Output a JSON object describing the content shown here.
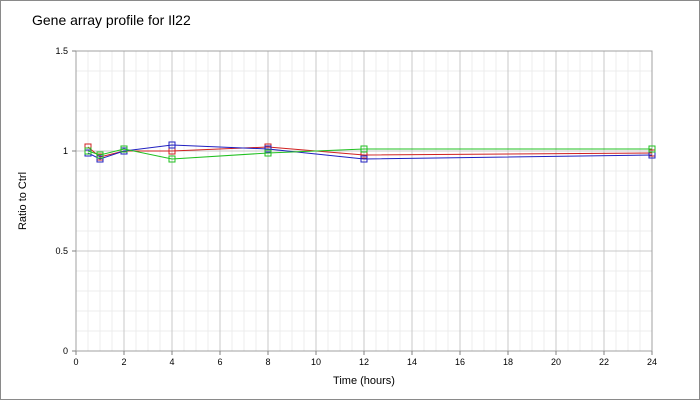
{
  "chart_data": {
    "type": "line",
    "title": "Gene array profile for Il22",
    "xlabel": "Time (hours)",
    "ylabel": "Ratio to Ctrl",
    "xlim": [
      0,
      24
    ],
    "ylim": [
      0,
      1.5
    ],
    "x_ticks": [
      "0",
      "2",
      "4",
      "6",
      "8",
      "10",
      "12",
      "14",
      "16",
      "18",
      "20",
      "22",
      "24"
    ],
    "y_ticks": [
      "0",
      "0.5",
      "1",
      "1.5"
    ],
    "grid": true,
    "legend": "none",
    "marker": "open-square",
    "series": [
      {
        "color": "#d02020",
        "x": [
          0.5,
          1,
          2,
          4,
          8,
          12,
          24
        ],
        "y": [
          1.02,
          0.97,
          1.0,
          1.0,
          1.02,
          0.98,
          0.99
        ]
      },
      {
        "color": "#2020c0",
        "x": [
          0.5,
          1,
          2,
          4,
          8,
          12,
          24
        ],
        "y": [
          0.99,
          0.96,
          1.0,
          1.03,
          1.01,
          0.96,
          0.98
        ]
      },
      {
        "color": "#20c020",
        "x": [
          0.5,
          1,
          2,
          4,
          8,
          12,
          24
        ],
        "y": [
          1.0,
          0.98,
          1.01,
          0.96,
          0.99,
          1.01,
          1.01
        ]
      }
    ]
  }
}
